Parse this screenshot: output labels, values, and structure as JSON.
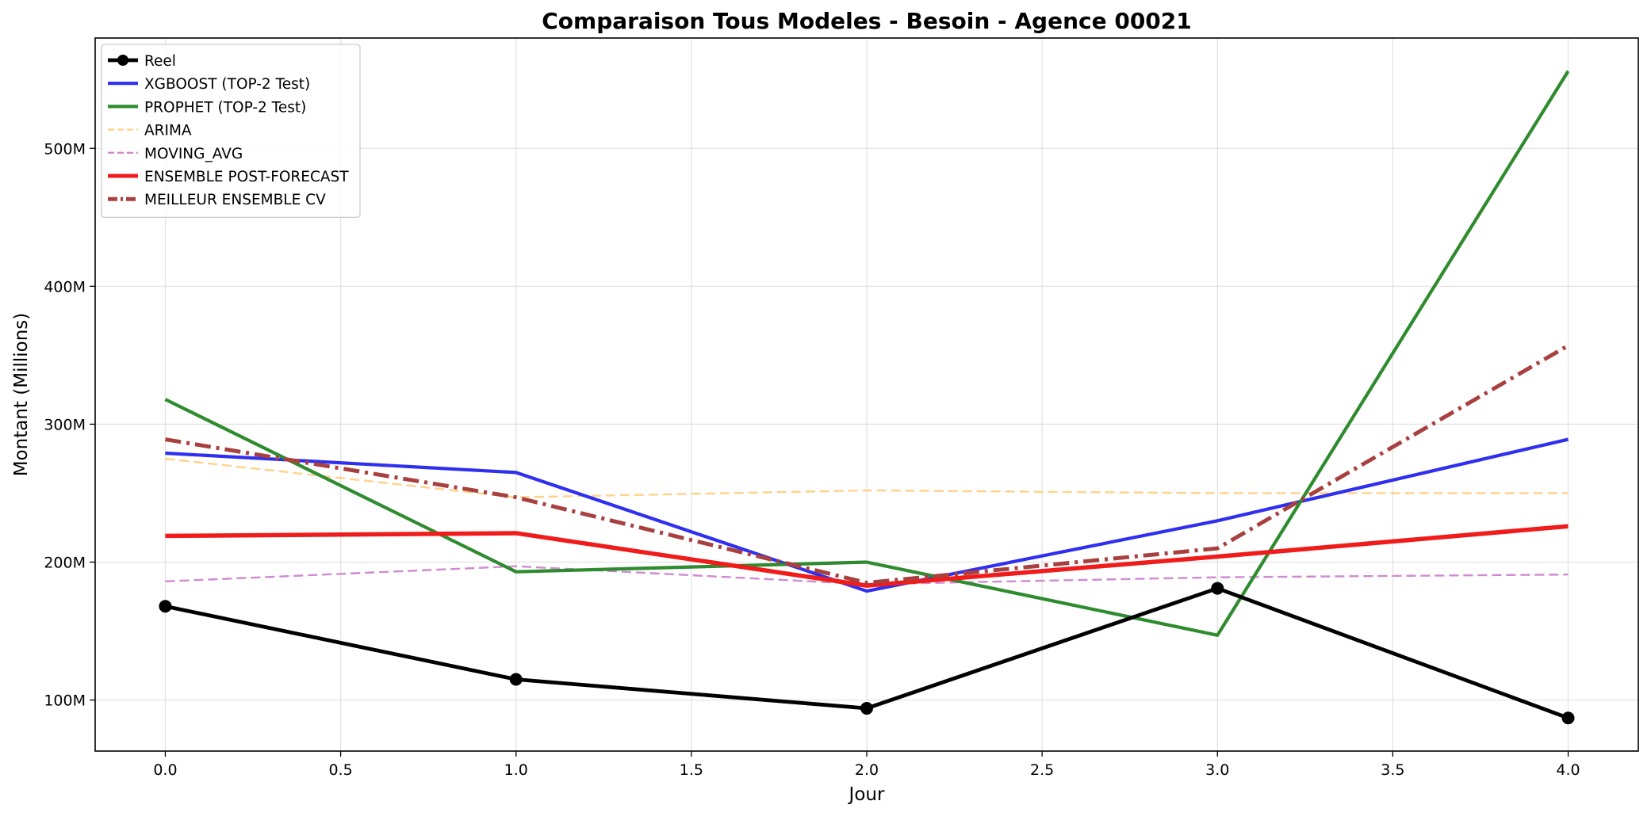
{
  "chart_data": {
    "type": "line",
    "title": "Comparaison Tous Modeles - Besoin - Agence 00021",
    "xlabel": "Jour",
    "ylabel": "Montant (Millions)",
    "x": [
      0.0,
      1.0,
      2.0,
      3.0,
      4.0
    ],
    "xlim": [
      -0.2,
      4.2
    ],
    "ylim": [
      63,
      580
    ],
    "xticks": [
      0.0,
      0.5,
      1.0,
      1.5,
      2.0,
      2.5,
      3.0,
      3.5,
      4.0
    ],
    "xtick_labels": [
      "0.0",
      "0.5",
      "1.0",
      "1.5",
      "2.0",
      "2.5",
      "3.0",
      "3.5",
      "4.0"
    ],
    "yticks": [
      100,
      200,
      300,
      400,
      500
    ],
    "ytick_labels": [
      "100M",
      "200M",
      "300M",
      "400M",
      "500M"
    ],
    "grid": true,
    "legend_position": "top-left",
    "series": [
      {
        "name": "Reel",
        "values": [
          168,
          115,
          94,
          181,
          87
        ],
        "color": "#000000",
        "style": "solid",
        "markers": true,
        "width": 4.8
      },
      {
        "name": "XGBOOST (TOP-2 Test)",
        "values": [
          279,
          265,
          179,
          230,
          289
        ],
        "color": "#2f2ff0",
        "style": "solid",
        "markers": false,
        "width": 4.2
      },
      {
        "name": "PROPHET (TOP-2 Test)",
        "values": [
          318,
          193,
          200,
          147,
          556
        ],
        "color": "#2e8b2e",
        "style": "solid",
        "markers": false,
        "width": 4.2
      },
      {
        "name": "ARIMA",
        "values": [
          275,
          247,
          252,
          250,
          250
        ],
        "color": "#ffd28a",
        "style": "dashed",
        "markers": false,
        "width": 2.4
      },
      {
        "name": "MOVING_AVG",
        "values": [
          186,
          197,
          184,
          189,
          191
        ],
        "color": "#d08ad0",
        "style": "dashed",
        "markers": false,
        "width": 2.4
      },
      {
        "name": "ENSEMBLE POST-FORECAST",
        "values": [
          219,
          221,
          183,
          204,
          226
        ],
        "color": "#f01c1c",
        "style": "solid",
        "markers": false,
        "width": 5.5
      },
      {
        "name": "MEILLEUR ENSEMBLE CV",
        "values": [
          289,
          247,
          185,
          210,
          357
        ],
        "color": "#a94040",
        "style": "dashdot",
        "markers": false,
        "width": 5.0
      }
    ]
  }
}
